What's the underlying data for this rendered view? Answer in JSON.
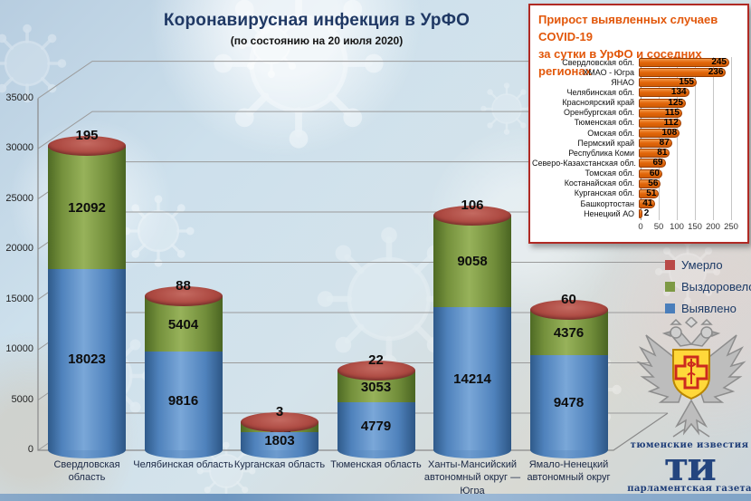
{
  "header": {
    "title": "Коронавирусная инфекция в УрФО",
    "subtitle": "(по состоянию на 20 июля 2020)"
  },
  "legend": [
    {
      "label": "Умерло",
      "color": "#b94a48"
    },
    {
      "label": "Выздоровело",
      "color": "#7d9944"
    },
    {
      "label": "Выявлено",
      "color": "#4a7ebb"
    }
  ],
  "chart_data": [
    {
      "type": "bar",
      "title": "Коронавирусная инфекция в УрФО",
      "subtitle": "(по состоянию на 20 июля 2020)",
      "stacked": true,
      "shape": "cylinder-3d",
      "categories": [
        "Свердловская область",
        "Челябинская область",
        "Курганская область",
        "Тюменская область",
        "Ханты-Мансийский автономный округ — Югра",
        "Ямало-Ненецкий автономный округ"
      ],
      "series": [
        {
          "name": "Выявлено",
          "color": "#4a7ebb",
          "values": [
            18023,
            9816,
            1803,
            4779,
            14214,
            9478
          ]
        },
        {
          "name": "Выздоровело",
          "color": "#7d9944",
          "values": [
            12092,
            5404,
            861,
            3053,
            9058,
            4376
          ]
        },
        {
          "name": "Умерло",
          "color": "#b94a48",
          "values": [
            195,
            88,
            3,
            22,
            106,
            60
          ]
        }
      ],
      "ylabel": "",
      "xlabel": "",
      "ylim": [
        0,
        35000
      ],
      "yticks": [
        0,
        5000,
        10000,
        15000,
        20000,
        25000,
        30000,
        35000
      ],
      "grid": true,
      "legend_position": "right"
    },
    {
      "type": "bar",
      "orientation": "horizontal",
      "title_line1": "Прирост выявленных случаев COVID-19",
      "title_line2": "за сутки в УрФО и соседних регионах",
      "categories": [
        "Свердловская обл.",
        "ХМАО - Югра",
        "ЯНАО",
        "Челябинская обл.",
        "Красноярский край",
        "Оренбургская обл.",
        "Тюменская обл.",
        "Омская обл.",
        "Пермский край",
        "Республика Коми",
        "Северо-Казахстанская обл.",
        "Томская обл.",
        "Костанайская обл.",
        "Курганская обл.",
        "Башкортостан",
        "Ненецкий АО"
      ],
      "values": [
        245,
        236,
        155,
        134,
        125,
        115,
        112,
        108,
        87,
        81,
        69,
        60,
        56,
        51,
        41,
        2
      ],
      "xlim": [
        0,
        250
      ],
      "xticks": [
        0,
        50,
        100,
        150,
        200,
        250
      ],
      "bar_color": "#e2660a",
      "grid": true
    }
  ],
  "footer_logo": {
    "top": "тюменские известия",
    "monogram": "ти",
    "bottom": "парламентская газета"
  }
}
